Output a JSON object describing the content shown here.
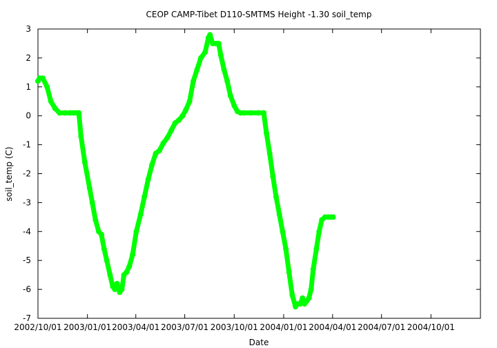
{
  "chart_data": {
    "type": "scatter",
    "title": "CEOP CAMP-Tibet D110-SMTMS Height -1.30 soil_temp",
    "xlabel": "Date",
    "ylabel": "soil_temp (C)",
    "x_ticks": [
      "2002/10/01",
      "2003/01/01",
      "2003/04/01",
      "2003/07/01",
      "2003/10/01",
      "2004/01/01",
      "2004/04/01",
      "2004/07/01",
      "2004/10/01"
    ],
    "x_range": [
      "2002/10/01",
      "2005/01/01"
    ],
    "y_ticks": [
      3,
      2,
      1,
      0,
      -1,
      -2,
      -3,
      -4,
      -5,
      -6,
      -7
    ],
    "ylim": [
      -7,
      3
    ],
    "grid": false,
    "colors": {
      "series": "#00ff00",
      "axis": "#000000",
      "background": "#ffffff"
    },
    "series": [
      {
        "name": "",
        "x": [
          "2002/10/01",
          "2002/10/04",
          "2002/10/10",
          "2002/10/18",
          "2002/10/25",
          "2002/11/02",
          "2002/11/10",
          "2002/11/20",
          "2002/11/30",
          "2002/12/06",
          "2002/12/12",
          "2002/12/16",
          "2002/12/20",
          "2002/12/27",
          "2003/01/05",
          "2003/01/10",
          "2003/01/16",
          "2003/01/22",
          "2003/01/27",
          "2003/02/01",
          "2003/02/06",
          "2003/02/12",
          "2003/02/17",
          "2003/02/21",
          "2003/02/25",
          "2003/03/02",
          "2003/03/06",
          "2003/03/10",
          "2003/03/15",
          "2003/03/20",
          "2003/03/26",
          "2003/04/02",
          "2003/04/10",
          "2003/04/17",
          "2003/04/24",
          "2003/05/01",
          "2003/05/08",
          "2003/05/15",
          "2003/05/22",
          "2003/05/30",
          "2003/06/06",
          "2003/06/13",
          "2003/06/20",
          "2003/06/27",
          "2003/07/03",
          "2003/07/10",
          "2003/07/17",
          "2003/07/24",
          "2003/07/31",
          "2003/08/08",
          "2003/08/14",
          "2003/08/17",
          "2003/08/22",
          "2003/08/28",
          "2003/09/02",
          "2003/09/06",
          "2003/09/12",
          "2003/09/18",
          "2003/09/24",
          "2003/10/01",
          "2003/10/07",
          "2003/10/13",
          "2003/10/20",
          "2003/11/01",
          "2003/11/15",
          "2003/11/25",
          "2003/11/30",
          "2003/12/06",
          "2003/12/12",
          "2003/12/18",
          "2003/12/24",
          "2003/12/30",
          "2004/01/05",
          "2004/01/11",
          "2004/01/17",
          "2004/01/23",
          "2004/01/27",
          "2004/02/01",
          "2004/02/05",
          "2004/02/09",
          "2004/02/13",
          "2004/02/17",
          "2004/02/21",
          "2004/02/25",
          "2004/03/02",
          "2004/03/07",
          "2004/03/12",
          "2004/03/18",
          "2004/03/24",
          "2004/03/29",
          "2004/04/02"
        ],
        "values": [
          1.2,
          1.3,
          1.3,
          1.0,
          0.5,
          0.25,
          0.1,
          0.1,
          0.1,
          0.1,
          0.1,
          0.1,
          -0.7,
          -1.6,
          -2.5,
          -3.0,
          -3.6,
          -4.0,
          -4.1,
          -4.6,
          -5.0,
          -5.5,
          -5.9,
          -6.0,
          -5.8,
          -6.1,
          -6.0,
          -5.5,
          -5.4,
          -5.2,
          -4.8,
          -4.0,
          -3.4,
          -2.8,
          -2.2,
          -1.7,
          -1.3,
          -1.2,
          -0.95,
          -0.75,
          -0.5,
          -0.25,
          -0.15,
          0.0,
          0.2,
          0.5,
          1.2,
          1.6,
          2.0,
          2.2,
          2.7,
          2.8,
          2.5,
          2.5,
          2.5,
          2.1,
          1.6,
          1.2,
          0.7,
          0.35,
          0.15,
          0.1,
          0.1,
          0.1,
          0.1,
          0.1,
          -0.6,
          -1.3,
          -2.1,
          -2.8,
          -3.4,
          -4.0,
          -4.6,
          -5.4,
          -6.2,
          -6.6,
          -6.5,
          -6.5,
          -6.3,
          -6.5,
          -6.4,
          -6.3,
          -6.0,
          -5.3,
          -4.6,
          -4.0,
          -3.6,
          -3.5,
          -3.5,
          -3.5,
          -3.5
        ]
      }
    ]
  }
}
